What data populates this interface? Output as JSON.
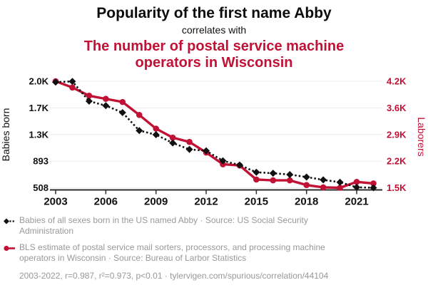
{
  "header": {
    "title": "Popularity of the first name Abby",
    "connector": "correlates with",
    "red_title": "The number of postal service machine operators in Wisconsin"
  },
  "chart_data": {
    "type": "line",
    "title": "Popularity of the first name Abby correlates with The number of postal service machine operators in Wisconsin",
    "x": [
      2003,
      2004,
      2005,
      2006,
      2007,
      2008,
      2009,
      2010,
      2011,
      2012,
      2013,
      2014,
      2015,
      2016,
      2017,
      2018,
      2019,
      2020,
      2021,
      2022
    ],
    "series": [
      {
        "name": "Babies of all sexes born in the US named Abby",
        "axis": "left",
        "color": "#111111",
        "line_style": "dashed",
        "marker": "diamond",
        "values": [
          2035,
          2046,
          1760,
          1695,
          1595,
          1335,
          1275,
          1156,
          1063,
          1042,
          898,
          836,
          732,
          718,
          699,
          663,
          622,
          588,
          515,
          508
        ]
      },
      {
        "name": "BLS estimate of postal service mail sorters, processors, and processing machine operators in Wisconsin",
        "axis": "right",
        "color": "#c11236",
        "line_style": "solid",
        "marker": "circle",
        "values": [
          4250,
          4090,
          3880,
          3800,
          3720,
          3390,
          3040,
          2810,
          2700,
          2430,
          2130,
          2100,
          1740,
          1720,
          1720,
          1600,
          1540,
          1530,
          1680,
          1640
        ]
      }
    ],
    "x_axis": {
      "ticks": [
        2003,
        2006,
        2009,
        2012,
        2015,
        2018,
        2021
      ],
      "range": [
        2003,
        2022
      ]
    },
    "left_axis": {
      "label": "Babies born",
      "tick_labels": [
        "508",
        "893",
        "1.3K",
        "1.7K",
        "2.0K"
      ],
      "range": [
        508,
        2048
      ],
      "color": "#111111"
    },
    "right_axis": {
      "label": "Laborers",
      "tick_labels": [
        "1.5K",
        "2.2K",
        "2.9K",
        "3.6K",
        "4.2K"
      ],
      "range": [
        1530,
        4250
      ],
      "color": "#c11236"
    },
    "grid": "horizontal",
    "legend_position": "bottom"
  },
  "legend": {
    "items": [
      {
        "icon": "black-diamond-dashed-line",
        "text": "Babies of all sexes born in the US named Abby · Source: US Social Security Administration"
      },
      {
        "icon": "red-circle-solid-line",
        "text": "BLS estimate of postal service mail sorters, processors, and processing machine operators in Wisconsin · Source: Bureau of Larbor Statistics"
      }
    ]
  },
  "footer": {
    "stats": "2003-2022, r=0.987, r²=0.973, p<0.01 · tylervigen.com/spurious/correlation/44104"
  },
  "colors": {
    "red": "#c11236",
    "black": "#111111",
    "legend_gray": "#999999",
    "grid": "#ececec",
    "axis": "#2e2e2e"
  }
}
